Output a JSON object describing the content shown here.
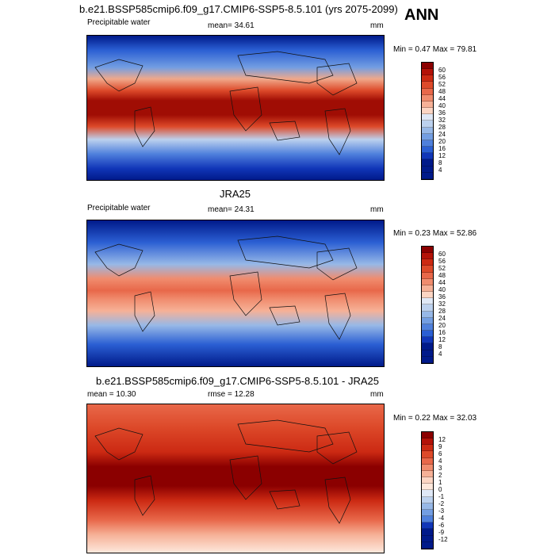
{
  "header": {
    "title": "b.e21.BSSP585cmip6.f09_g17.CMIP6-SSP5-8.5.101 (yrs 2075-2099)",
    "season": "ANN"
  },
  "panel1": {
    "variable": "Precipitable water",
    "mean": "mean=  34.61",
    "units": "mm",
    "minmax": "Min =   0.47 Max =  79.81",
    "colorbar_labels": [
      "60",
      "56",
      "52",
      "48",
      "44",
      "40",
      "36",
      "32",
      "28",
      "24",
      "20",
      "16",
      "12",
      "8",
      "4"
    ]
  },
  "panel2": {
    "title": "JRA25",
    "variable": "Precipitable water",
    "mean": "mean=  24.31",
    "units": "mm",
    "minmax": "Min =  0.23 Max =  52.86",
    "colorbar_labels": [
      "60",
      "56",
      "52",
      "48",
      "44",
      "40",
      "36",
      "32",
      "28",
      "24",
      "20",
      "16",
      "12",
      "8",
      "4"
    ]
  },
  "panel3": {
    "title": "b.e21.BSSP585cmip6.f09_g17.CMIP6-SSP5-8.5.101 - JRA25",
    "mean": "mean =  10.30",
    "rmse": "rmse =  12.28",
    "units": "mm",
    "minmax": "Min =  0.22 Max =  32.03",
    "colorbar_labels": [
      "12",
      "9",
      "6",
      "4",
      "3",
      "2",
      "1",
      "0",
      "-1",
      "-2",
      "-3",
      "-4",
      "-6",
      "-9",
      "-12"
    ]
  },
  "colors": {
    "abs_scale": [
      "#8b0000",
      "#b31208",
      "#cc2a13",
      "#dd4a2a",
      "#e8684a",
      "#f08c6e",
      "#f6b197",
      "#fbd5c3",
      "#dfe8f6",
      "#bcd1ee",
      "#97b8e7",
      "#739ee2",
      "#4f80dc",
      "#2b5fd3",
      "#1136b8",
      "#001a8a"
    ],
    "diff_scale": [
      "#8b0000",
      "#b31208",
      "#cc2a13",
      "#dd4a2a",
      "#e8684a",
      "#f08c6e",
      "#f6b197",
      "#fbd5c3",
      "#fde8dc",
      "#dfe8f6",
      "#bcd1ee",
      "#97b8e7",
      "#739ee2",
      "#4f80dc",
      "#1136b8",
      "#001a8a"
    ]
  }
}
